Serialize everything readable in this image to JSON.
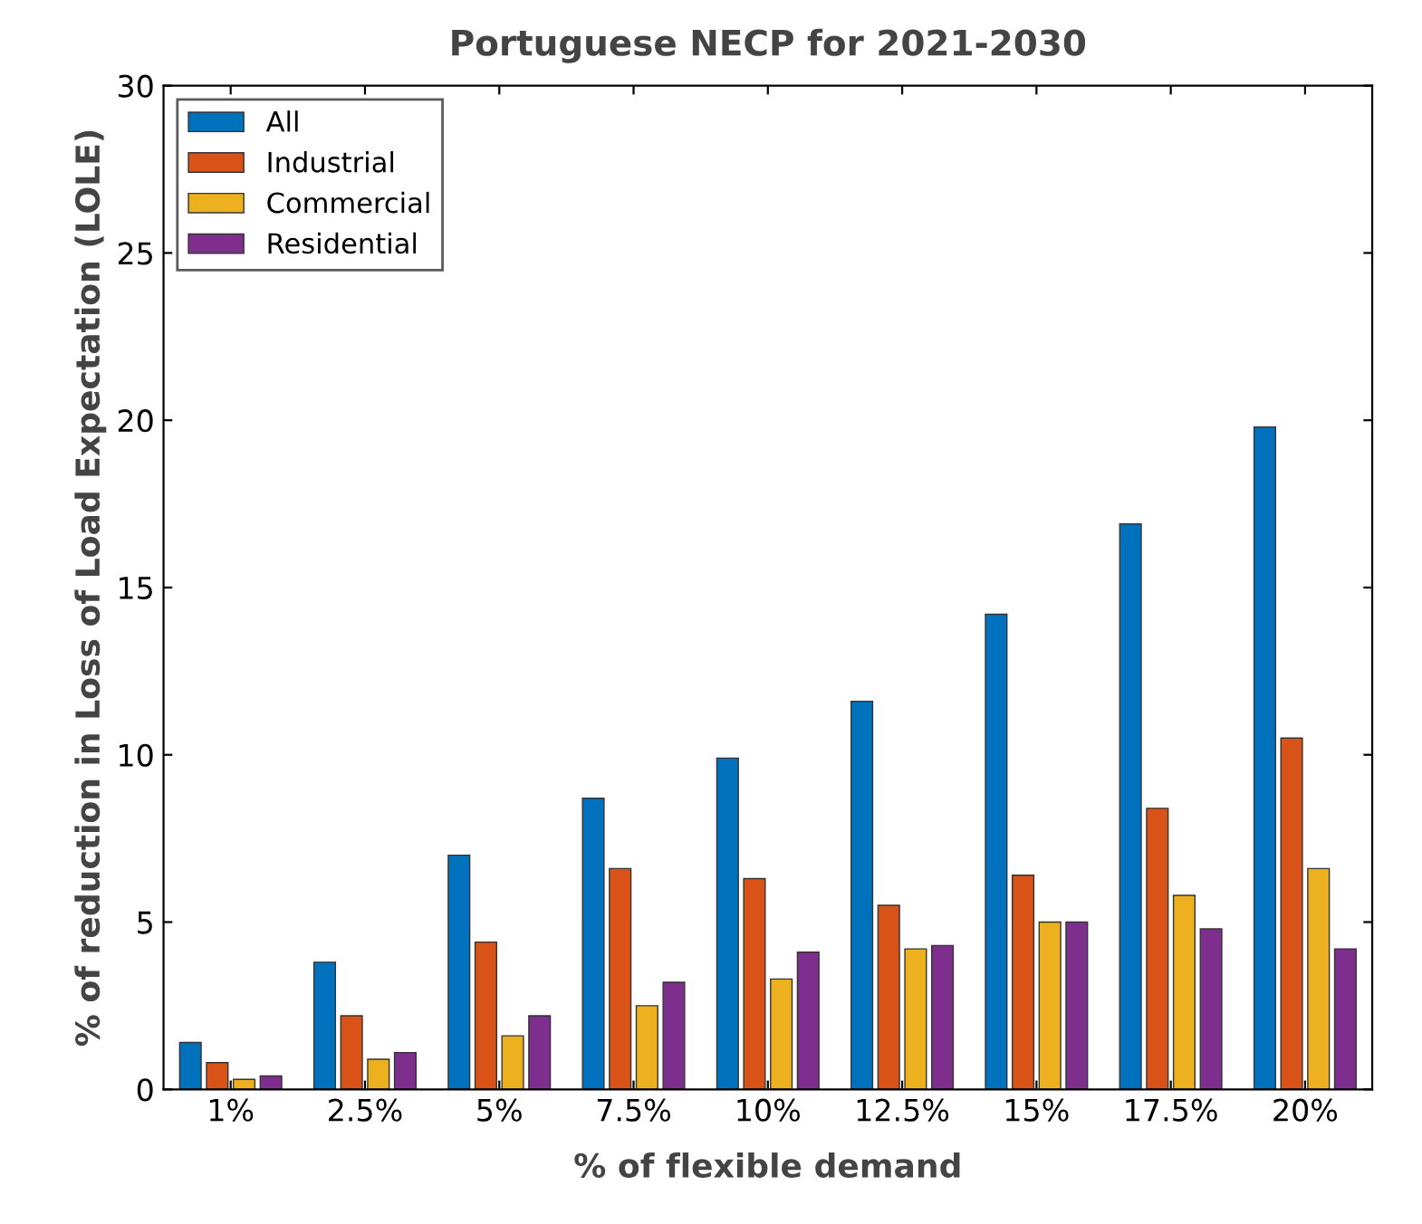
{
  "chart_data": {
    "type": "bar",
    "title": "Portuguese NECP for 2021-2030",
    "xlabel": "% of flexible demand",
    "ylabel": "% of reduction in Loss of Load Expectation (LOLE)",
    "categories": [
      "1%",
      "2.5%",
      "5%",
      "7.5%",
      "10%",
      "12.5%",
      "15%",
      "17.5%",
      "20%"
    ],
    "series": [
      {
        "name": "All",
        "color": "#0072bd",
        "values": [
          1.4,
          3.8,
          7.0,
          8.7,
          9.9,
          11.6,
          14.2,
          16.9,
          19.8
        ]
      },
      {
        "name": "Industrial",
        "color": "#d95319",
        "values": [
          0.8,
          2.2,
          4.4,
          6.6,
          6.3,
          5.5,
          6.4,
          8.4,
          10.5
        ]
      },
      {
        "name": "Commercial",
        "color": "#edb120",
        "values": [
          0.3,
          0.9,
          1.6,
          2.5,
          3.3,
          4.2,
          5.0,
          5.8,
          6.6
        ]
      },
      {
        "name": "Residential",
        "color": "#7e2f8e",
        "values": [
          0.4,
          1.1,
          2.2,
          3.2,
          4.1,
          4.3,
          5.0,
          4.8,
          4.2
        ]
      }
    ],
    "ylim": [
      0,
      30
    ],
    "yticks": [
      0,
      5,
      10,
      15,
      20,
      25,
      30
    ],
    "grid": false,
    "legend": "top left"
  }
}
